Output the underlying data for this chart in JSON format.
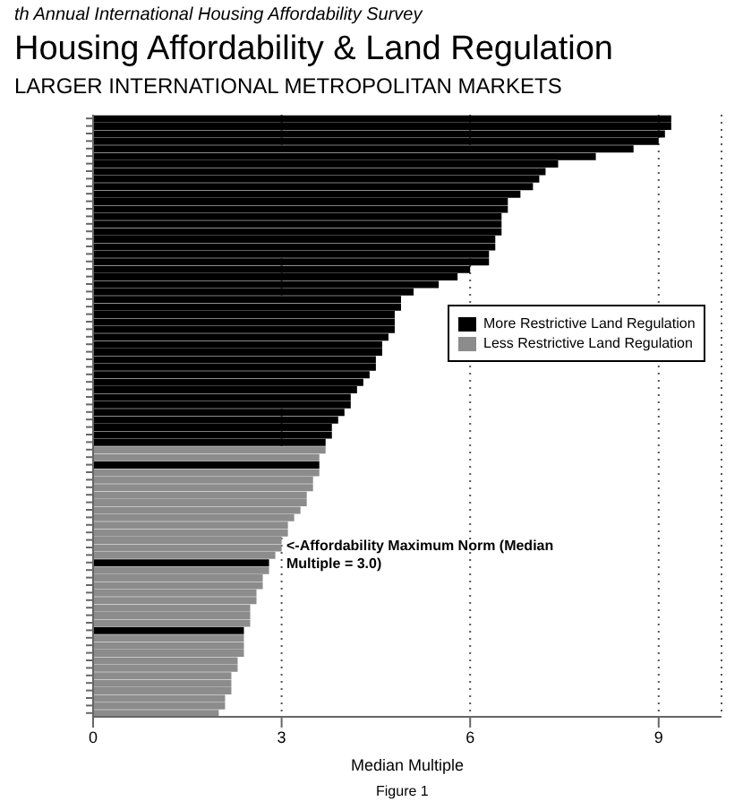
{
  "chart_data": {
    "type": "bar",
    "orientation": "horizontal",
    "stacked": true,
    "title": "Housing Affordability & Land Regulation",
    "subtitle": "LARGER INTERNATIONAL METROPOLITAN MARKETS",
    "xlabel": "Median Multiple",
    "annotations": [
      "th Annual International Housing Affordability Survey",
      "<-Affordability Maximum Norm (Median Multiple = 3.0)",
      "Figure 1"
    ],
    "categories": [
      null,
      null,
      null,
      null,
      null,
      null,
      null,
      null,
      null,
      null,
      null,
      null,
      null,
      null,
      null,
      null,
      null,
      null,
      null,
      null,
      null,
      null,
      null,
      null,
      null,
      null,
      null,
      null,
      null,
      null,
      null,
      null,
      null,
      null,
      null,
      null,
      null,
      null,
      null,
      null,
      null,
      null,
      null,
      null,
      null,
      null,
      null,
      null,
      null,
      null,
      null,
      null,
      null,
      null,
      null,
      null,
      null,
      null,
      null,
      null,
      null,
      null,
      null,
      null,
      null,
      null,
      null,
      null,
      null,
      null,
      null,
      null,
      null,
      null,
      null,
      null,
      null,
      null,
      null,
      null
    ],
    "series": [
      {
        "name": "More Restrictive Land Regulation",
        "color": "#000000",
        "values": [
          9.2,
          9.2,
          9.1,
          9.0,
          8.6,
          8.0,
          7.4,
          7.2,
          7.1,
          7.0,
          6.8,
          6.6,
          6.6,
          6.5,
          6.5,
          6.5,
          6.4,
          6.4,
          6.3,
          6.3,
          6.0,
          5.8,
          5.5,
          5.1,
          4.9,
          4.9,
          4.8,
          4.8,
          4.8,
          4.7,
          4.6,
          4.6,
          4.5,
          4.5,
          4.4,
          4.3,
          4.2,
          4.1,
          4.1,
          4.0,
          3.9,
          3.8,
          3.8,
          3.7,
          null,
          null,
          3.6,
          null,
          null,
          null,
          null,
          null,
          null,
          null,
          null,
          null,
          null,
          null,
          null,
          2.8,
          null,
          null,
          null,
          null,
          null,
          null,
          null,
          null,
          2.4,
          null,
          null,
          null,
          null,
          null,
          null,
          null,
          null,
          null,
          null,
          null
        ]
      },
      {
        "name": "Less Restrictive Land Regulation",
        "color": "#8c8c8c",
        "values": [
          null,
          null,
          null,
          null,
          null,
          null,
          null,
          null,
          null,
          null,
          null,
          null,
          null,
          null,
          null,
          null,
          null,
          null,
          null,
          null,
          null,
          null,
          null,
          null,
          null,
          null,
          null,
          null,
          null,
          null,
          null,
          null,
          null,
          null,
          null,
          null,
          null,
          null,
          null,
          null,
          null,
          null,
          null,
          null,
          3.7,
          3.6,
          null,
          3.6,
          3.5,
          3.5,
          3.4,
          3.4,
          3.3,
          3.2,
          3.1,
          3.1,
          3.0,
          3.0,
          2.9,
          null,
          2.8,
          2.7,
          2.7,
          2.6,
          2.6,
          2.5,
          2.5,
          2.5,
          null,
          2.4,
          2.4,
          2.4,
          2.3,
          2.3,
          2.2,
          2.2,
          2.2,
          2.1,
          2.1,
          2.0
        ]
      }
    ],
    "xlim": [
      0,
      10
    ],
    "xticks": [
      0,
      3,
      6,
      9
    ],
    "grid": "x",
    "legend": "right"
  }
}
